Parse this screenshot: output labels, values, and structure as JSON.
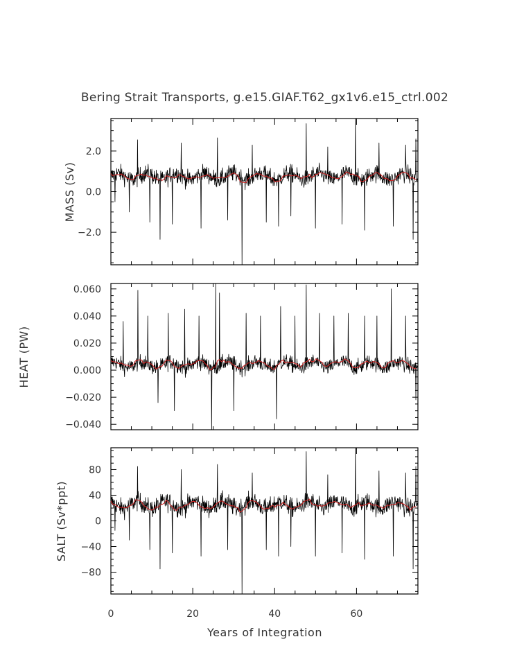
{
  "chart_data": {
    "type": "line",
    "title": "Bering Strait Transports, g.e15.GIAF.T62_gx1v6.e15_ctrl.002",
    "xlabel": "Years of Integration",
    "xlim": [
      0,
      75
    ],
    "xticks": [
      0,
      20,
      40,
      60
    ],
    "xtick_labels": [
      "0",
      "20",
      "40",
      "60"
    ],
    "series_colors": {
      "monthly": "#000000",
      "annual_mean": "#d62020"
    },
    "panels": [
      {
        "ylabel": "MASS (Sv)",
        "ylim": [
          -3.6,
          3.6
        ],
        "yticks": [
          2.0,
          0.0,
          -2.0
        ],
        "ytick_labels": [
          "2.0",
          "0.0",
          "−2.0"
        ],
        "mean_level": 0.75,
        "spread": 0.45,
        "spikes": [
          {
            "x": 1.0,
            "y": -0.5
          },
          {
            "x": 4.5,
            "y": -1.0
          },
          {
            "x": 6.5,
            "y": 2.55
          },
          {
            "x": 9.5,
            "y": -1.5
          },
          {
            "x": 12.0,
            "y": -2.35
          },
          {
            "x": 15.0,
            "y": -1.6
          },
          {
            "x": 17.2,
            "y": 2.4
          },
          {
            "x": 22.0,
            "y": -1.8
          },
          {
            "x": 26.0,
            "y": 2.65
          },
          {
            "x": 28.5,
            "y": -1.4
          },
          {
            "x": 32.0,
            "y": -3.6
          },
          {
            "x": 34.5,
            "y": 2.3
          },
          {
            "x": 38.0,
            "y": -1.5
          },
          {
            "x": 41.0,
            "y": -1.7
          },
          {
            "x": 44.0,
            "y": -1.2
          },
          {
            "x": 47.7,
            "y": 3.35
          },
          {
            "x": 50.0,
            "y": -1.8
          },
          {
            "x": 53.0,
            "y": 2.2
          },
          {
            "x": 56.5,
            "y": -1.6
          },
          {
            "x": 59.7,
            "y": 3.6
          },
          {
            "x": 62.0,
            "y": -1.9
          },
          {
            "x": 65.5,
            "y": 2.4
          },
          {
            "x": 69.0,
            "y": -1.7
          },
          {
            "x": 72.0,
            "y": 2.3
          },
          {
            "x": 73.8,
            "y": -2.35
          },
          {
            "x": 74.5,
            "y": 2.6
          }
        ]
      },
      {
        "ylabel": "HEAT (PW)",
        "ylim": [
          -0.044,
          0.064
        ],
        "yticks": [
          0.06,
          0.04,
          0.02,
          0.0,
          -0.02,
          -0.04
        ],
        "ytick_labels": [
          "0.060",
          "0.040",
          "0.020",
          "0.000",
          "−0.020",
          "−0.040"
        ],
        "mean_level": 0.004,
        "spread": 0.006,
        "spikes": [
          {
            "x": 3.0,
            "y": 0.036
          },
          {
            "x": 6.6,
            "y": 0.059
          },
          {
            "x": 9.0,
            "y": 0.04
          },
          {
            "x": 11.5,
            "y": -0.024
          },
          {
            "x": 14.0,
            "y": 0.042
          },
          {
            "x": 15.5,
            "y": -0.03
          },
          {
            "x": 18.0,
            "y": 0.045
          },
          {
            "x": 21.5,
            "y": 0.04
          },
          {
            "x": 24.6,
            "y": -0.044
          },
          {
            "x": 25.6,
            "y": 0.064
          },
          {
            "x": 26.5,
            "y": 0.057
          },
          {
            "x": 30.0,
            "y": -0.03
          },
          {
            "x": 33.0,
            "y": 0.042
          },
          {
            "x": 36.5,
            "y": 0.04
          },
          {
            "x": 40.5,
            "y": -0.036
          },
          {
            "x": 41.5,
            "y": 0.047
          },
          {
            "x": 45.0,
            "y": 0.04
          },
          {
            "x": 47.7,
            "y": 0.063
          },
          {
            "x": 51.0,
            "y": 0.042
          },
          {
            "x": 54.5,
            "y": 0.04
          },
          {
            "x": 58.0,
            "y": 0.042
          },
          {
            "x": 62.0,
            "y": 0.04
          },
          {
            "x": 65.0,
            "y": 0.04
          },
          {
            "x": 68.5,
            "y": 0.06
          },
          {
            "x": 72.0,
            "y": 0.04
          },
          {
            "x": 74.5,
            "y": -0.022
          }
        ]
      },
      {
        "ylabel": "SALT (Sv*ppt)",
        "ylim": [
          -114,
          114
        ],
        "yticks": [
          80,
          40,
          0,
          -40,
          -80
        ],
        "ytick_labels": [
          "80",
          "40",
          "0",
          "−40",
          "−80"
        ],
        "mean_level": 25,
        "spread": 15,
        "spikes": [
          {
            "x": 1.0,
            "y": -15
          },
          {
            "x": 4.5,
            "y": -30
          },
          {
            "x": 6.5,
            "y": 85
          },
          {
            "x": 9.5,
            "y": -45
          },
          {
            "x": 12.0,
            "y": -75
          },
          {
            "x": 15.0,
            "y": -50
          },
          {
            "x": 17.2,
            "y": 80
          },
          {
            "x": 22.0,
            "y": -55
          },
          {
            "x": 26.0,
            "y": 88
          },
          {
            "x": 28.5,
            "y": -45
          },
          {
            "x": 32.0,
            "y": -114
          },
          {
            "x": 34.5,
            "y": 75
          },
          {
            "x": 38.0,
            "y": -45
          },
          {
            "x": 41.0,
            "y": -55
          },
          {
            "x": 44.0,
            "y": -40
          },
          {
            "x": 47.7,
            "y": 108
          },
          {
            "x": 50.0,
            "y": -55
          },
          {
            "x": 53.0,
            "y": 72
          },
          {
            "x": 56.5,
            "y": -50
          },
          {
            "x": 59.7,
            "y": 114
          },
          {
            "x": 62.0,
            "y": -60
          },
          {
            "x": 65.5,
            "y": 78
          },
          {
            "x": 69.0,
            "y": -55
          },
          {
            "x": 72.0,
            "y": 75
          },
          {
            "x": 73.8,
            "y": -75
          },
          {
            "x": 74.5,
            "y": 85
          }
        ]
      }
    ]
  }
}
